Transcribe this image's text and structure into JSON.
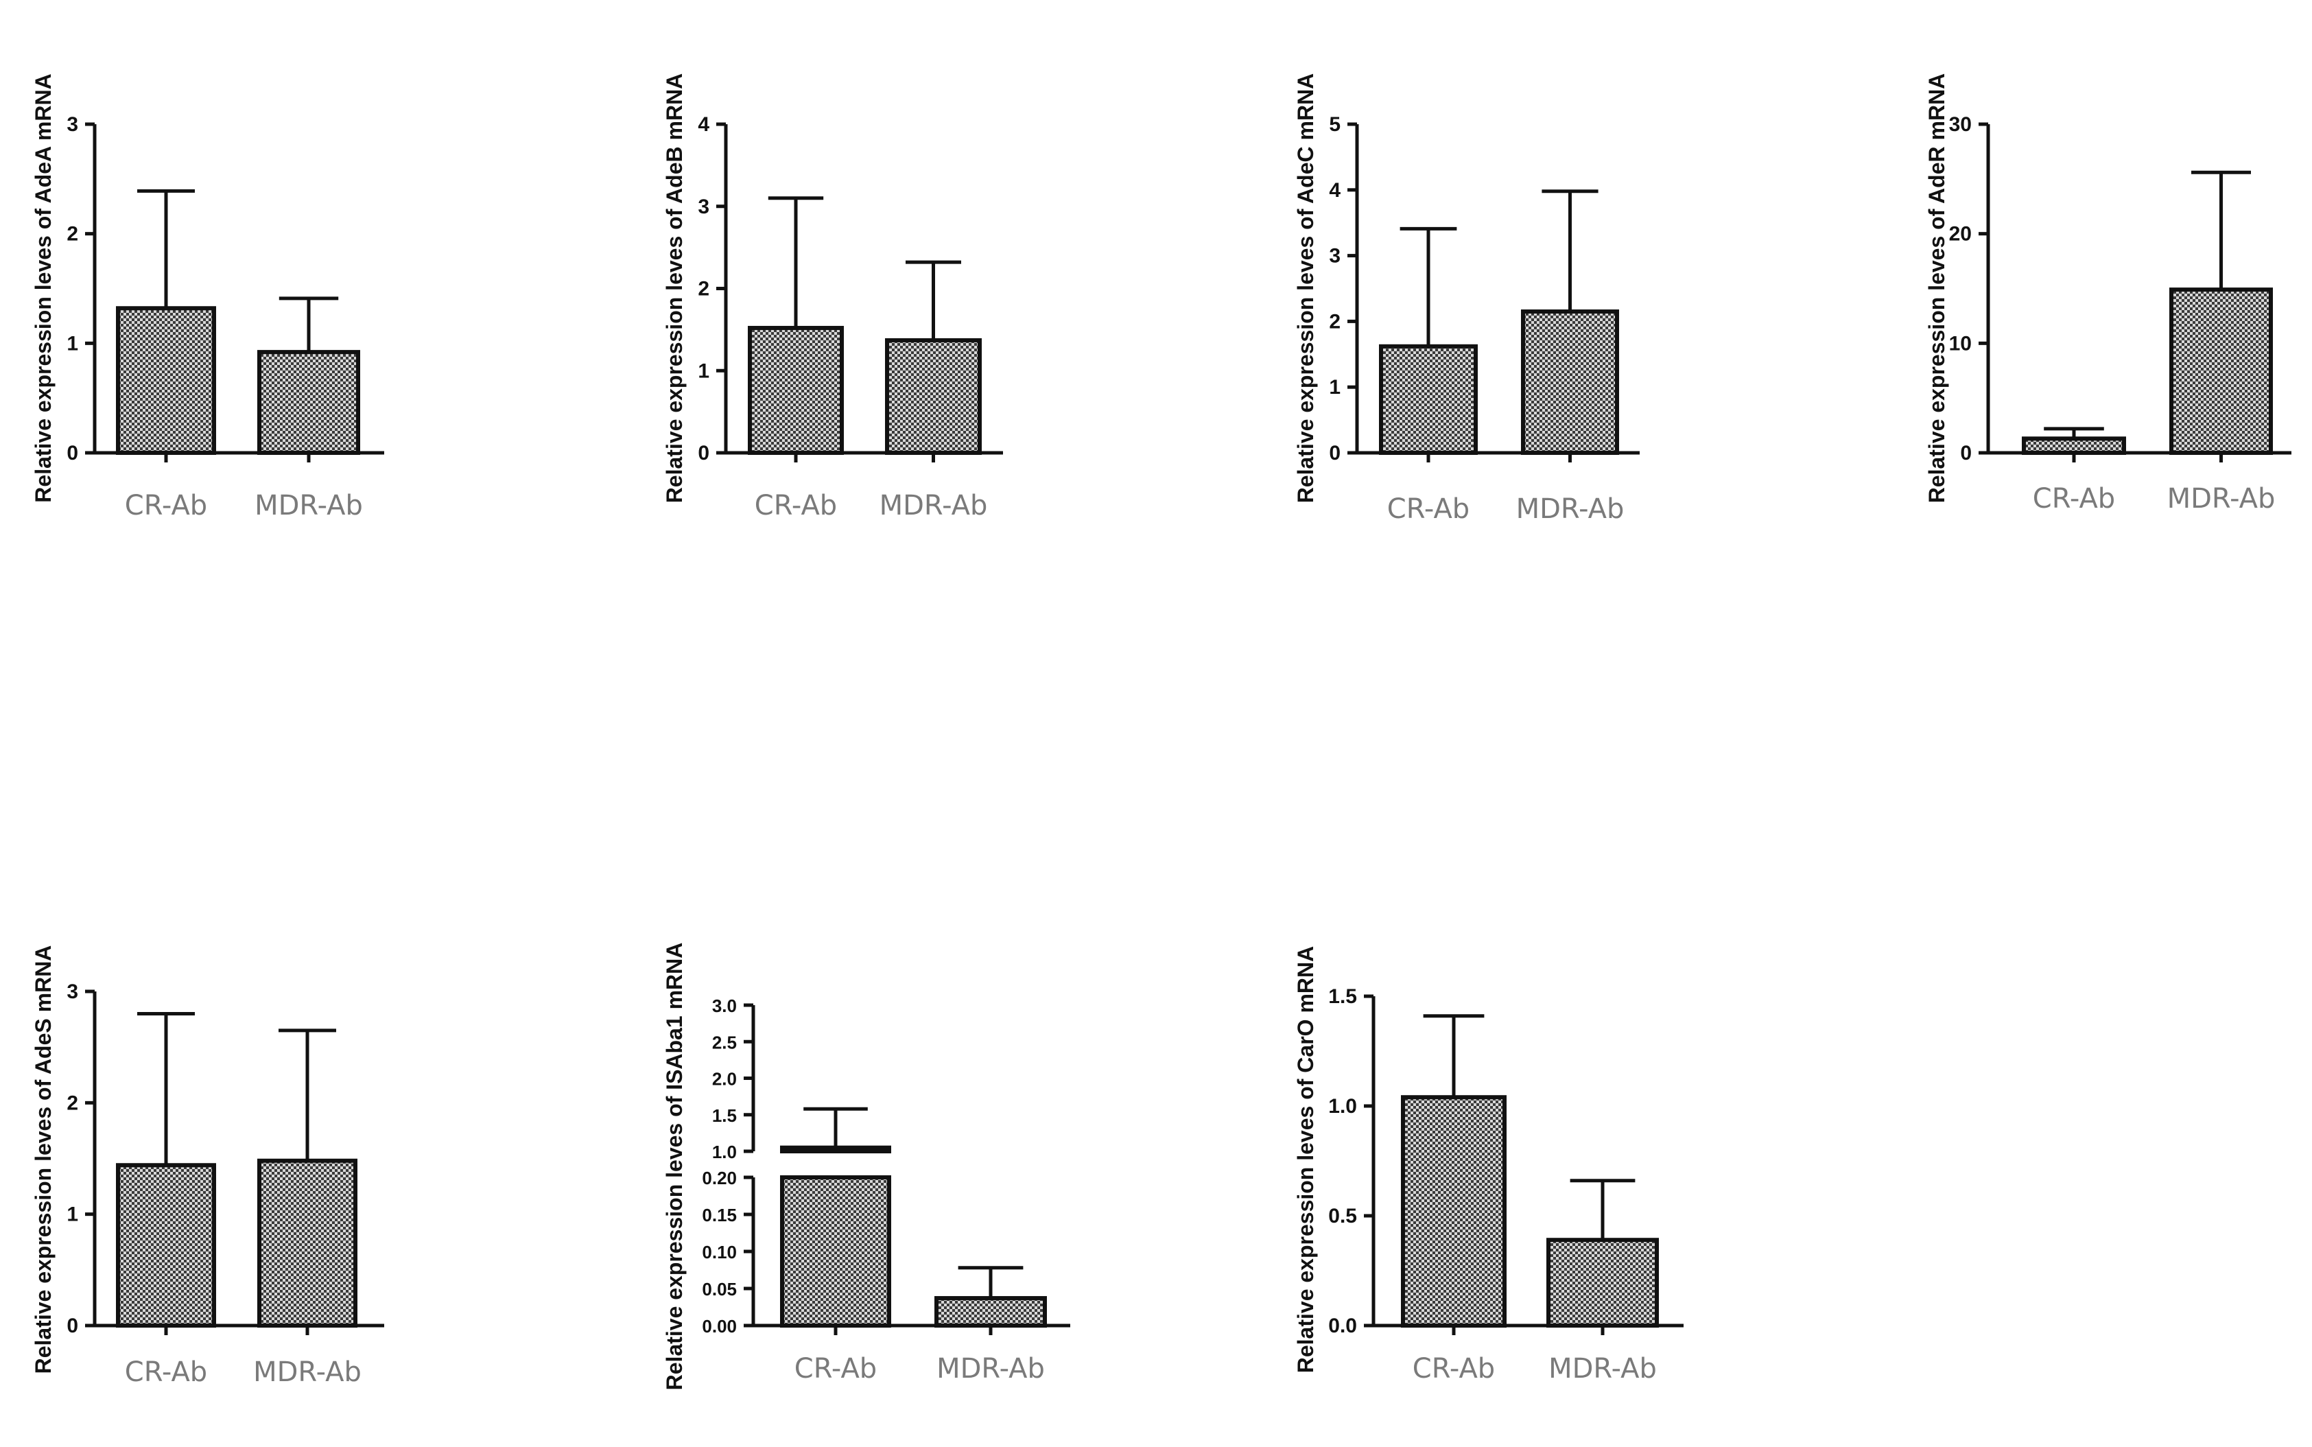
{
  "chart_data": [
    {
      "type": "bar",
      "ylabel": "Relative expression leves of AdeA mRNA",
      "categories": [
        "CR-Ab",
        "MDR-Ab"
      ],
      "values": [
        1.32,
        0.92
      ],
      "errors": [
        1.07,
        0.49
      ],
      "ylim": [
        0,
        3
      ],
      "yticks": [
        "0",
        "1",
        "2",
        "3"
      ]
    },
    {
      "type": "bar",
      "ylabel": "Relative expression leves of AdeB mRNA",
      "categories": [
        "CR-Ab",
        "MDR-Ab"
      ],
      "values": [
        1.52,
        1.37
      ],
      "errors": [
        1.58,
        0.95
      ],
      "ylim": [
        0,
        4
      ],
      "yticks": [
        "0",
        "1",
        "2",
        "3",
        "4"
      ]
    },
    {
      "type": "bar",
      "ylabel": "Relative expression leves of AdeC mRNA",
      "categories": [
        "CR-Ab",
        "MDR-Ab"
      ],
      "values": [
        1.62,
        2.15
      ],
      "errors": [
        1.79,
        1.83
      ],
      "ylim": [
        0,
        5
      ],
      "yticks": [
        "0",
        "1",
        "2",
        "3",
        "4",
        "5"
      ]
    },
    {
      "type": "bar",
      "ylabel": "Relative expression leves of AdeR mRNA",
      "categories": [
        "CR-Ab",
        "MDR-Ab"
      ],
      "values": [
        1.3,
        14.9
      ],
      "errors": [
        0.9,
        10.7
      ],
      "ylim": [
        0,
        30
      ],
      "yticks": [
        "0",
        "10",
        "20",
        "30"
      ]
    },
    {
      "type": "bar",
      "ylabel": "Relative expression leves of AdeS mRNA",
      "categories": [
        "CR-Ab",
        "MDR-Ab"
      ],
      "values": [
        1.44,
        1.48
      ],
      "errors": [
        1.36,
        1.17
      ],
      "ylim": [
        0,
        3
      ],
      "yticks": [
        "0",
        "1",
        "2",
        "3"
      ]
    },
    {
      "type": "bar",
      "ylabel": "Relative expression leves of ISAba1 mRNA",
      "categories": [
        "CR-Ab",
        "MDR-Ab"
      ],
      "values": [
        1.05,
        0.037
      ],
      "errors": [
        0.53,
        0.041
      ],
      "ylim": [
        0,
        3.0
      ],
      "axis_break": [
        0.2,
        1.0
      ],
      "yticks_lower": [
        "0.00",
        "0.05",
        "0.10",
        "0.15",
        "0.20"
      ],
      "yticks_upper": [
        "1.0",
        "1.5",
        "2.0",
        "2.5",
        "3.0"
      ]
    },
    {
      "type": "bar",
      "ylabel": "Relative expression leves of CarO mRNA",
      "categories": [
        "CR-Ab",
        "MDR-Ab"
      ],
      "values": [
        1.04,
        0.39
      ],
      "errors": [
        0.37,
        0.27
      ],
      "ylim": [
        0,
        1.5
      ],
      "yticks": [
        "0.0",
        "0.5",
        "1.0",
        "1.5"
      ]
    }
  ]
}
